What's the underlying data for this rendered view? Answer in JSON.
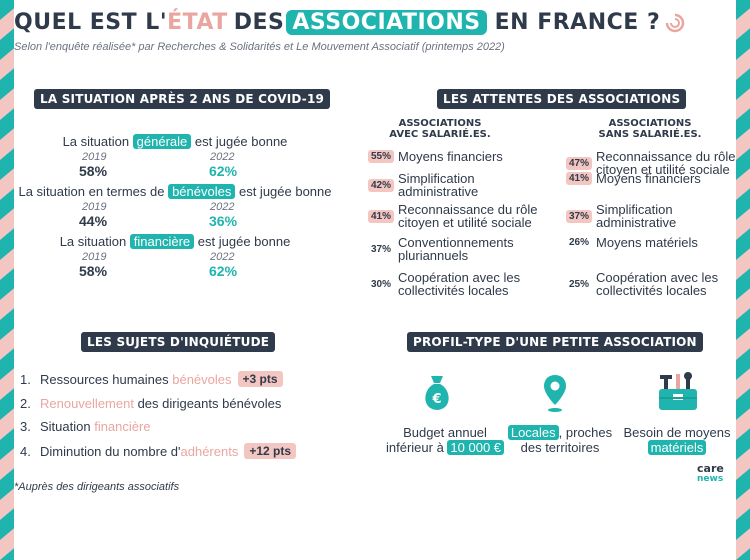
{
  "header": {
    "title_part1": "QUEL EST L'",
    "title_pink": "ÉTAT",
    "title_part2": "DES",
    "title_highlight": "ASSOCIATIONS",
    "title_part3": "EN FRANCE ?",
    "subtitle": "Selon l'enquête réalisée* par Recherches & Solidarités et Le Mouvement Associatif (printemps 2022)"
  },
  "covid": {
    "section_title": "LA SITUATION APRÈS 2 ANS DE COVID-19",
    "rows": [
      {
        "before": "La situation ",
        "keyword": "générale",
        "after": " est jugée bonne",
        "year1": "2019",
        "value1": "58%",
        "year2": "2022",
        "value2": "62%"
      },
      {
        "before": "La situation en termes de ",
        "keyword": "bénévoles",
        "after": " est jugée bonne",
        "year1": "2019",
        "value1": "44%",
        "year2": "2022",
        "value2": "36%"
      },
      {
        "before": "La situation ",
        "keyword": "financière",
        "after": " est jugée bonne",
        "year1": "2019",
        "value1": "58%",
        "year2": "2022",
        "value2": "62%"
      }
    ],
    "value1_color": "#2f3a4a",
    "value2_color": "#1fb5ae"
  },
  "attentes": {
    "section_title": "LES ATTENTES DES ASSOCIATIONS",
    "col1_head": [
      "ASSOCIATIONS",
      "AVEC SALARIÉ.ES."
    ],
    "col2_head": [
      "ASSOCIATIONS",
      "SANS SALARIÉ.ES."
    ],
    "col1": [
      {
        "pct": "55%",
        "lines": [
          "Moyens financiers"
        ],
        "highlight": true
      },
      {
        "pct": "42%",
        "lines": [
          "Simplification",
          "administrative"
        ],
        "highlight": true
      },
      {
        "pct": "41%",
        "lines": [
          "Reconnaissance du rôle",
          "citoyen et utilité sociale"
        ],
        "highlight": true
      },
      {
        "pct": "37%",
        "lines": [
          "Conventionnements",
          "pluriannuels"
        ],
        "highlight": false
      },
      {
        "pct": "30%",
        "lines": [
          "Coopération avec les",
          "collectivités locales"
        ],
        "highlight": false
      }
    ],
    "col2": [
      {
        "pct": "47%",
        "lines": [
          "Reconnaissance du rôle",
          "citoyen et utilité sociale"
        ],
        "highlight": true
      },
      {
        "pct": "41%",
        "lines": [
          "Moyens financiers"
        ],
        "highlight": true
      },
      {
        "pct": "37%",
        "lines": [
          "Simplification",
          "administrative"
        ],
        "highlight": true
      },
      {
        "pct": "26%",
        "lines": [
          "Moyens matériels"
        ],
        "highlight": false
      },
      {
        "pct": "25%",
        "lines": [
          "Coopération avec les",
          "collectivités locales"
        ],
        "highlight": false
      }
    ]
  },
  "sujets": {
    "section_title": "LES SUJETS D'INQUIÉTUDE",
    "items": [
      {
        "num": "1.",
        "parts": [
          {
            "t": "Ressources humaines ",
            "c": "n"
          },
          {
            "t": "bénévoles",
            "c": "p"
          }
        ],
        "tag": "+3 pts"
      },
      {
        "num": "2.",
        "parts": [
          {
            "t": "Renouvellement",
            "c": "p"
          },
          {
            "t": " des dirigeants bénévoles",
            "c": "n"
          }
        ],
        "tag": ""
      },
      {
        "num": "3.",
        "parts": [
          {
            "t": "Situation ",
            "c": "n"
          },
          {
            "t": "financière",
            "c": "p"
          }
        ],
        "tag": ""
      },
      {
        "num": "4.",
        "parts": [
          {
            "t": "Diminution du nombre d'",
            "c": "n"
          },
          {
            "t": "adhérents",
            "c": "p"
          }
        ],
        "tag": "+12 pts"
      }
    ]
  },
  "profil": {
    "section_title": "PROFIL-TYPE D'UNE PETITE ASSOCIATION",
    "budget": {
      "line1": "Budget annuel",
      "line2_before": "inférieur à ",
      "line2_kw": "10 000 €"
    },
    "locales": {
      "kw": "Locales",
      "line1_after": ", proches",
      "line2": "des territoires"
    },
    "materiels": {
      "line1": "Besoin de moyens",
      "kw": "matériels"
    },
    "icons": [
      "money-bag-icon",
      "location-pin-icon",
      "tools-icon"
    ]
  },
  "footnote": "*Auprès des dirigeants associatifs",
  "logo": {
    "line1": "care",
    "line2": "news"
  },
  "colors": {
    "teal": "#1fb5ae",
    "pink": "#e9a6a0",
    "pink_light": "#f4c6c1",
    "navy": "#2f3a4a"
  }
}
